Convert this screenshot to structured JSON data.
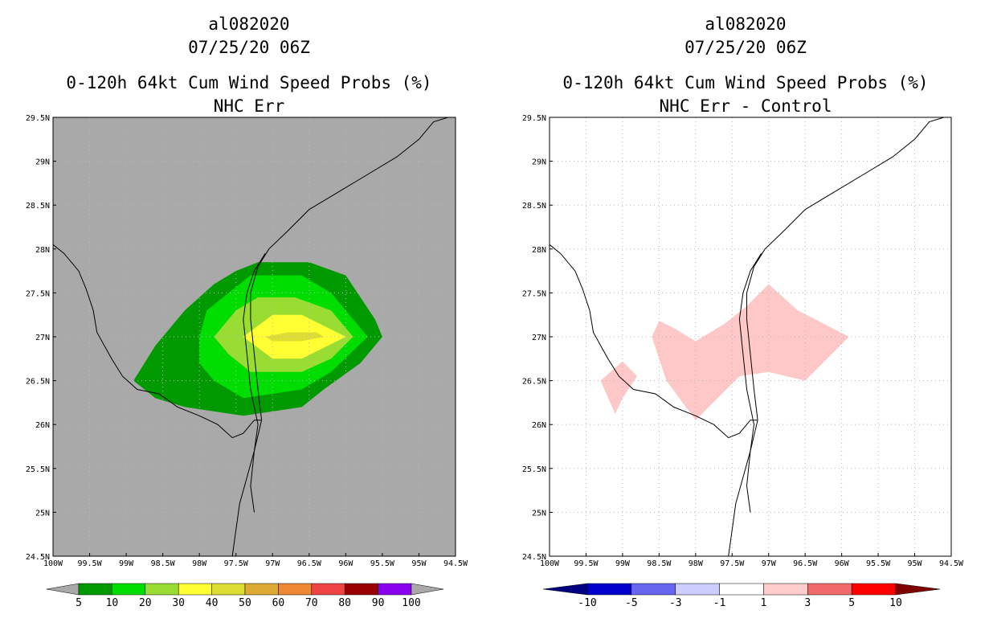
{
  "colors": {
    "land_bg_left": "#a9a9a9",
    "coast": "#000000",
    "grid": "#b8b8b8"
  },
  "chart_data": [
    {
      "type": "heatmap",
      "title": "al082020",
      "subtitle": "07/25/20 06Z",
      "title2": "0-120h 64kt Cum Wind Speed Probs (%)",
      "title3": "NHC Err",
      "xlabel": "",
      "ylabel": "",
      "xlim": [
        -100,
        -94.5
      ],
      "ylim": [
        24.5,
        29.5
      ],
      "x_ticks": [
        "100W",
        "99.5W",
        "99W",
        "98.5W",
        "98W",
        "97.5W",
        "97W",
        "96.5W",
        "96W",
        "95.5W",
        "95W",
        "94.5W"
      ],
      "y_ticks": [
        "24.5N",
        "25N",
        "25.5N",
        "26N",
        "26.5N",
        "27N",
        "27.5N",
        "28N",
        "28.5N",
        "29N",
        "29.5N"
      ],
      "grid": true,
      "background": "#a9a9a9",
      "colorbar": {
        "colors": [
          "#009900",
          "#00dd00",
          "#99dd33",
          "#ffff33",
          "#dddd33",
          "#ddaa33",
          "#ee8833",
          "#ee4444",
          "#990000",
          "#8800ee"
        ],
        "labels": [
          "5",
          "10",
          "20",
          "30",
          "40",
          "50",
          "60",
          "70",
          "80",
          "90",
          "100"
        ],
        "left_arrow": "#a9a9a9",
        "right_arrow": "#a9a9a9"
      },
      "contours": [
        {
          "level": "5-10",
          "color": "#009900",
          "points": [
            [
              -98.9,
              26.5
            ],
            [
              -98.6,
              26.9
            ],
            [
              -98.2,
              27.3
            ],
            [
              -97.8,
              27.6
            ],
            [
              -97.5,
              27.75
            ],
            [
              -97.2,
              27.85
            ],
            [
              -96.5,
              27.85
            ],
            [
              -96.0,
              27.7
            ],
            [
              -95.6,
              27.2
            ],
            [
              -95.5,
              27.0
            ],
            [
              -95.8,
              26.7
            ],
            [
              -96.3,
              26.4
            ],
            [
              -96.6,
              26.2
            ],
            [
              -97.4,
              26.1
            ],
            [
              -98.2,
              26.2
            ],
            [
              -98.6,
              26.3
            ]
          ]
        },
        {
          "level": "10-20",
          "color": "#00dd00",
          "points": [
            [
              -98.0,
              27.0
            ],
            [
              -97.9,
              27.3
            ],
            [
              -97.6,
              27.5
            ],
            [
              -97.3,
              27.7
            ],
            [
              -96.6,
              27.7
            ],
            [
              -96.2,
              27.5
            ],
            [
              -95.7,
              27.0
            ],
            [
              -96.2,
              26.6
            ],
            [
              -96.6,
              26.4
            ],
            [
              -97.4,
              26.3
            ],
            [
              -97.8,
              26.5
            ],
            [
              -98.0,
              26.7
            ]
          ]
        },
        {
          "level": "20-30",
          "color": "#99dd33",
          "points": [
            [
              -97.8,
              27.0
            ],
            [
              -97.5,
              27.3
            ],
            [
              -97.2,
              27.45
            ],
            [
              -96.7,
              27.45
            ],
            [
              -96.2,
              27.3
            ],
            [
              -95.9,
              27.0
            ],
            [
              -96.2,
              26.75
            ],
            [
              -96.6,
              26.6
            ],
            [
              -97.3,
              26.6
            ],
            [
              -97.6,
              26.8
            ]
          ]
        },
        {
          "level": "30-40",
          "color": "#ffff33",
          "points": [
            [
              -97.4,
              27.0
            ],
            [
              -97.0,
              27.25
            ],
            [
              -96.6,
              27.25
            ],
            [
              -96.0,
              27.0
            ],
            [
              -96.6,
              26.75
            ],
            [
              -97.0,
              26.75
            ]
          ]
        },
        {
          "level": "40-50",
          "color": "#dddd33",
          "points": [
            [
              -97.1,
              27.0
            ],
            [
              -96.8,
              27.05
            ],
            [
              -96.4,
              27.05
            ],
            [
              -96.3,
              27.0
            ],
            [
              -96.6,
              26.95
            ],
            [
              -97.0,
              26.95
            ]
          ]
        }
      ]
    },
    {
      "type": "heatmap",
      "title": "al082020",
      "subtitle": "07/25/20 06Z",
      "title2": "0-120h 64kt Cum Wind Speed Probs (%)",
      "title3": "NHC Err - Control",
      "xlabel": "",
      "ylabel": "",
      "xlim": [
        -100,
        -94.5
      ],
      "ylim": [
        24.5,
        29.5
      ],
      "x_ticks": [
        "100W",
        "99.5W",
        "99W",
        "98.5W",
        "98W",
        "97.5W",
        "97W",
        "96.5W",
        "96W",
        "95.5W",
        "95W",
        "94.5W"
      ],
      "y_ticks": [
        "24.5N",
        "25N",
        "25.5N",
        "26N",
        "26.5N",
        "27N",
        "27.5N",
        "28N",
        "28.5N",
        "29N",
        "29.5N"
      ],
      "grid": true,
      "background": "#ffffff",
      "colorbar": {
        "colors": [
          "#0000cc",
          "#6666ee",
          "#ccccff",
          "#ffffff",
          "#ffcccc",
          "#f06a6a",
          "#ff0000"
        ],
        "labels": [
          "-10",
          "-5",
          "-3",
          "-1",
          "1",
          "3",
          "5",
          "10"
        ],
        "left_arrow": "#000080",
        "right_arrow": "#800000"
      },
      "contours": [
        {
          "level": "1-3",
          "color": "#ffc8c8",
          "points": [
            [
              -99.3,
              26.5
            ],
            [
              -99.0,
              26.72
            ],
            [
              -98.8,
              26.55
            ],
            [
              -99.0,
              26.3
            ],
            [
              -99.1,
              26.12
            ]
          ]
        },
        {
          "level": "1-3",
          "color": "#ffc8c8",
          "points": [
            [
              -98.6,
              27.0
            ],
            [
              -98.5,
              27.18
            ],
            [
              -98.3,
              27.1
            ],
            [
              -98.0,
              26.95
            ],
            [
              -97.6,
              27.15
            ],
            [
              -97.3,
              27.35
            ],
            [
              -97.0,
              27.6
            ],
            [
              -96.6,
              27.3
            ],
            [
              -95.9,
              27.0
            ],
            [
              -96.5,
              26.5
            ],
            [
              -97.0,
              26.6
            ],
            [
              -97.4,
              26.55
            ],
            [
              -98.0,
              26.05
            ],
            [
              -98.4,
              26.5
            ]
          ]
        }
      ]
    }
  ]
}
